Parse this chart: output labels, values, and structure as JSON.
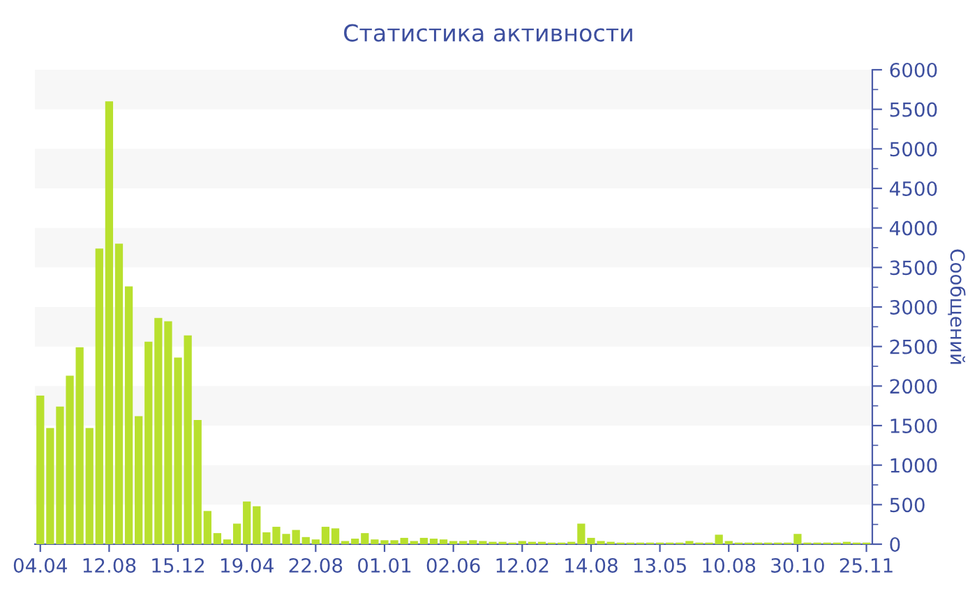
{
  "chart_data": {
    "type": "bar",
    "title": "Статистика активности",
    "ylabel": "Сообщений",
    "categories": [
      "04.04",
      null,
      null,
      null,
      null,
      null,
      null,
      "12.08",
      null,
      null,
      null,
      null,
      null,
      null,
      "15.12",
      null,
      null,
      null,
      null,
      null,
      null,
      "19.04",
      null,
      null,
      null,
      null,
      null,
      null,
      "22.08",
      null,
      null,
      null,
      null,
      null,
      null,
      "01.01",
      null,
      null,
      null,
      null,
      null,
      null,
      "02.06",
      null,
      null,
      null,
      null,
      null,
      null,
      "12.02",
      null,
      null,
      null,
      null,
      null,
      null,
      "14.08",
      null,
      null,
      null,
      null,
      null,
      null,
      "13.05",
      null,
      null,
      null,
      null,
      null,
      null,
      "10.08",
      null,
      null,
      null,
      null,
      null,
      null,
      "30.10",
      null,
      null,
      null,
      null,
      null,
      null,
      "25.11"
    ],
    "values": [
      1880,
      1470,
      1740,
      2130,
      2490,
      1470,
      3740,
      5600,
      3800,
      3260,
      1620,
      2560,
      2860,
      2820,
      2360,
      2640,
      1570,
      420,
      140,
      60,
      260,
      540,
      480,
      150,
      220,
      130,
      180,
      90,
      60,
      220,
      200,
      40,
      70,
      140,
      60,
      50,
      50,
      80,
      40,
      80,
      70,
      60,
      40,
      40,
      50,
      40,
      30,
      30,
      20,
      40,
      30,
      30,
      20,
      20,
      30,
      260,
      80,
      40,
      30,
      20,
      20,
      20,
      20,
      20,
      20,
      20,
      40,
      20,
      20,
      120,
      40,
      20,
      20,
      20,
      20,
      20,
      20,
      130,
      20,
      20,
      20,
      20,
      30,
      20,
      20
    ],
    "color": "#b8e02e",
    "ylim": [
      0,
      6000
    ],
    "yticks": [
      0,
      500,
      1000,
      1500,
      2000,
      2500,
      3000,
      3500,
      4000,
      4500,
      5000,
      5500,
      6000
    ],
    "bands": [
      {
        "axis": "y",
        "from": 500,
        "to": 1000,
        "color": "#f7f7f7"
      },
      {
        "axis": "y",
        "from": 1500,
        "to": 2000,
        "color": "#f7f7f7"
      },
      {
        "axis": "y",
        "from": 2500,
        "to": 3000,
        "color": "#f7f7f7"
      },
      {
        "axis": "y",
        "from": 3500,
        "to": 4000,
        "color": "#f7f7f7"
      },
      {
        "axis": "y",
        "from": 4500,
        "to": 5000,
        "color": "#f7f7f7"
      },
      {
        "axis": "y",
        "from": 5500,
        "to": 6000,
        "color": "#f7f7f7"
      }
    ],
    "grid": false,
    "legend": false
  }
}
